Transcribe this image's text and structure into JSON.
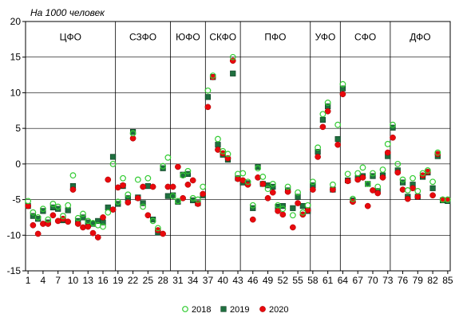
{
  "chart_data": {
    "type": "scatter",
    "title": "",
    "unit_label": "На 1000 человек",
    "xlabel": "",
    "ylabel": "",
    "xlim": [
      0.5,
      85.5
    ],
    "ylim": [
      -15,
      20
    ],
    "yticks": [
      -15,
      -10,
      -5,
      0,
      5,
      10,
      15,
      20
    ],
    "xticks": [
      1,
      4,
      7,
      10,
      13,
      16,
      19,
      22,
      25,
      28,
      31,
      34,
      37,
      40,
      43,
      46,
      49,
      52,
      55,
      58,
      61,
      64,
      67,
      70,
      73,
      76,
      79,
      82,
      85
    ],
    "grid": true,
    "legend_position": "bottom",
    "districts": [
      {
        "label": "ЦФО",
        "start": 1,
        "end": 18
      },
      {
        "label": "СЗФО",
        "start": 19,
        "end": 29
      },
      {
        "label": "ЮФО",
        "start": 30,
        "end": 36
      },
      {
        "label": "СКФО",
        "start": 37,
        "end": 43
      },
      {
        "label": "ПФО",
        "start": 44,
        "end": 57
      },
      {
        "label": "УФО",
        "start": 58,
        "end": 63
      },
      {
        "label": "СФО",
        "start": 64,
        "end": 73
      },
      {
        "label": "ДФО",
        "start": 74,
        "end": 85
      }
    ],
    "series": [
      {
        "name": "2018",
        "marker": "hollow-circle",
        "color": "#33cc33",
        "values": [
          -5.2,
          -6.8,
          -7.5,
          -6.3,
          -7.8,
          -5.6,
          -6.0,
          -7.3,
          -5.8,
          -1.6,
          -7.6,
          -7.0,
          -8.0,
          -8.3,
          -8.6,
          -8.8,
          -6.8,
          0.0,
          -5.3,
          -2.0,
          -4.3,
          4.3,
          -2.2,
          -6.0,
          -2.0,
          -8.0,
          -9.0,
          -0.3,
          0.9,
          -4.5,
          -5.2,
          -1.6,
          -1.0,
          -4.8,
          -5.0,
          -3.2,
          10.3,
          12.4,
          3.5,
          1.8,
          1.4,
          15.0,
          -1.4,
          -1.3,
          -2.5,
          -5.8,
          -0.6,
          -1.8,
          -3.5,
          -2.8,
          -5.8,
          -6.3,
          -3.2,
          -7.2,
          -4.0,
          -6.8,
          -5.8,
          -2.5,
          2.3,
          7.0,
          8.6,
          -2.9,
          5.5,
          11.2,
          -1.4,
          -4.9,
          -1.3,
          -0.5,
          -2.8,
          -1.3,
          -3.2,
          -0.8,
          2.8,
          5.5,
          0.0,
          -2.2,
          -3.7,
          -2.0,
          -3.8,
          -1.3,
          -0.9,
          -2.5,
          1.6,
          -5.0,
          -5.0
        ]
      },
      {
        "name": "2019",
        "marker": "filled-square",
        "color": "#1f6f3f",
        "values": [
          -5.9,
          -7.3,
          -7.7,
          -6.6,
          -8.2,
          -6.1,
          -6.3,
          -7.9,
          -6.5,
          -3.1,
          -8.0,
          -7.5,
          -8.2,
          -8.4,
          -8.0,
          -8.2,
          -6.1,
          1.0,
          -5.6,
          -3.1,
          -4.8,
          4.5,
          -4.7,
          -5.5,
          -3.1,
          -7.8,
          -9.6,
          -0.6,
          -4.5,
          -4.4,
          -5.3,
          -1.5,
          -1.4,
          -5.1,
          -5.5,
          -4.4,
          9.4,
          12.2,
          2.7,
          1.3,
          0.6,
          12.7,
          -2.0,
          -2.6,
          -2.7,
          -6.2,
          -0.4,
          -2.8,
          -3.0,
          -3.2,
          -6.0,
          -5.9,
          -3.7,
          -6.2,
          -4.6,
          -5.9,
          -6.6,
          -3.0,
          1.7,
          6.2,
          8.1,
          -3.6,
          3.5,
          10.6,
          -2.3,
          -5.1,
          -2.0,
          -1.7,
          -2.8,
          -1.7,
          -3.8,
          -1.6,
          1.1,
          5.1,
          -0.9,
          -2.6,
          -4.6,
          -2.9,
          -4.6,
          -1.8,
          -1.2,
          -3.4,
          1.1,
          -5.1,
          -5.2
        ]
      },
      {
        "name": "2020",
        "marker": "filled-circle",
        "color": "#e8090d",
        "values": [
          -5.9,
          -8.6,
          -9.8,
          -8.4,
          -8.4,
          -7.2,
          -8.0,
          -7.7,
          -8.1,
          -3.6,
          -8.4,
          -8.9,
          -8.8,
          -9.7,
          -10.3,
          -7.5,
          -2.2,
          -6.4,
          -3.3,
          -3.0,
          -5.4,
          3.6,
          -4.8,
          -3.2,
          -7.2,
          -3.2,
          -9.3,
          -9.8,
          -3.2,
          -3.2,
          -0.4,
          -4.8,
          -2.9,
          -2.3,
          -5.6,
          -4.2,
          8.0,
          12.2,
          2.0,
          1.5,
          0.8,
          14.5,
          -2.1,
          -2.3,
          -2.9,
          -7.8,
          -1.9,
          -2.8,
          -4.8,
          -4.0,
          -6.6,
          -7.1,
          -3.9,
          -8.9,
          -5.5,
          -7.1,
          -6.5,
          -3.6,
          1.0,
          5.2,
          7.4,
          -3.6,
          2.7,
          9.8,
          -2.4,
          -5.3,
          -2.2,
          -1.9,
          -5.9,
          -3.7,
          -4.1,
          -1.9,
          1.6,
          3.7,
          -1.2,
          -3.6,
          -4.9,
          -3.4,
          -4.6,
          -1.6,
          -1.1,
          -4.4,
          1.4,
          -5.0,
          -5.0
        ]
      }
    ]
  }
}
